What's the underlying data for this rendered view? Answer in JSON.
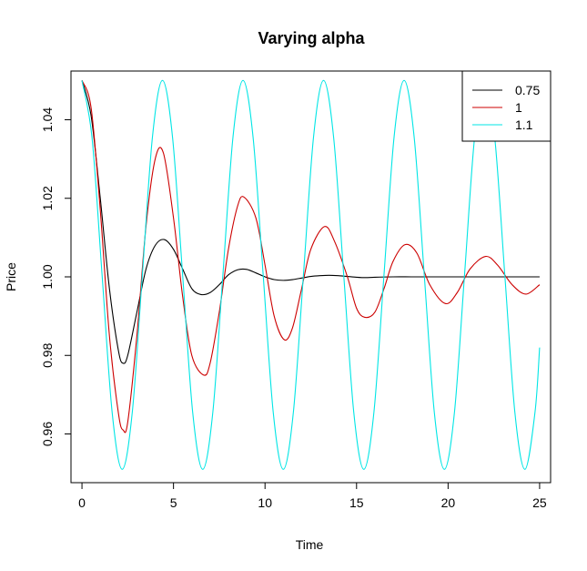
{
  "chart_data": {
    "type": "line",
    "title": "Varying alpha",
    "xlabel": "Time",
    "ylabel": "Price",
    "xlim": [
      -0.6,
      25.6
    ],
    "ylim": [
      0.9476,
      1.0524
    ],
    "xticks": [
      0,
      5,
      10,
      15,
      20,
      25
    ],
    "yticks": [
      0.96,
      0.98,
      1.0,
      1.02,
      1.04
    ],
    "xtick_labels": [
      "0",
      "5",
      "10",
      "15",
      "20",
      "25"
    ],
    "ytick_labels": [
      "0.96",
      "0.98",
      "1.00",
      "1.02",
      "1.04"
    ],
    "grid": false,
    "legend_position": "top-right",
    "colors": {
      "0.75": "#000000",
      "1": "#cc0000",
      "1.1": "#00e5e5"
    },
    "series": [
      {
        "name": "0.75",
        "color": "#000000",
        "x": [
          0.0,
          0.5,
          1.0,
          1.5,
          2.0,
          2.25,
          2.5,
          3.0,
          3.5,
          4.0,
          4.5,
          5.0,
          5.5,
          6.0,
          6.5,
          7.0,
          7.5,
          8.0,
          8.5,
          9.0,
          9.5,
          10.0,
          10.5,
          11.0,
          11.5,
          12.0,
          12.5,
          13.0,
          13.5,
          14.0,
          14.5,
          15.0,
          15.5,
          16.0,
          17.0,
          18.0,
          19.0,
          20.0,
          22.0,
          25.0
        ],
        "y": [
          1.05,
          1.041,
          1.02,
          0.997,
          0.981,
          0.978,
          0.98,
          0.991,
          1.002,
          1.008,
          1.0095,
          1.007,
          1.002,
          0.997,
          0.9955,
          0.996,
          0.998,
          1.0005,
          1.0018,
          1.0019,
          1.001,
          1.0,
          0.9993,
          0.9991,
          0.9993,
          0.9997,
          1.0001,
          1.0003,
          1.0004,
          1.0003,
          1.0001,
          0.9999,
          0.9998,
          0.9999,
          1.0,
          1.0,
          1.0,
          1.0,
          1.0,
          1.0
        ]
      },
      {
        "name": "1",
        "color": "#cc0000",
        "x": [
          0.0,
          0.5,
          1.0,
          1.5,
          2.0,
          2.25,
          2.5,
          3.0,
          3.5,
          4.0,
          4.45,
          5.0,
          5.5,
          6.0,
          6.65,
          7.0,
          7.5,
          8.0,
          8.5,
          8.85,
          9.5,
          10.0,
          10.5,
          11.05,
          11.5,
          12.0,
          12.5,
          13.25,
          13.8,
          14.5,
          15.0,
          15.45,
          16.0,
          16.5,
          17.0,
          17.65,
          18.3,
          19.0,
          19.85,
          20.5,
          21.2,
          22.05,
          22.7,
          23.5,
          24.25,
          25.0
        ],
        "y": [
          1.05,
          1.043,
          1.017,
          0.985,
          0.965,
          0.961,
          0.963,
          0.985,
          1.013,
          1.03,
          1.0315,
          1.015,
          0.995,
          0.98,
          0.975,
          0.978,
          0.991,
          1.007,
          1.018,
          1.0203,
          1.015,
          1.003,
          0.99,
          0.984,
          0.987,
          0.997,
          1.007,
          1.0128,
          1.009,
          1.0,
          0.992,
          0.9897,
          0.991,
          0.997,
          1.004,
          1.0082,
          1.006,
          0.998,
          0.9932,
          0.996,
          1.002,
          1.0052,
          1.003,
          0.998,
          0.9956,
          0.998
        ]
      },
      {
        "name": "1.1",
        "color": "#00e5e5",
        "x": [
          0.0,
          0.55,
          1.1,
          1.65,
          2.2,
          2.75,
          3.3,
          3.85,
          4.4,
          4.95,
          5.5,
          6.05,
          6.6,
          7.15,
          7.7,
          8.25,
          8.8,
          9.35,
          9.9,
          10.45,
          11.0,
          11.55,
          12.1,
          12.65,
          13.2,
          13.75,
          14.3,
          14.85,
          15.4,
          15.95,
          16.5,
          17.05,
          17.6,
          18.15,
          18.7,
          19.25,
          19.8,
          20.35,
          20.9,
          21.45,
          22.0,
          22.55,
          23.1,
          23.65,
          24.2,
          24.75,
          25.0
        ],
        "y": [
          1.05,
          1.0354,
          1.0004,
          0.9654,
          0.951,
          0.9656,
          1.0006,
          1.0356,
          1.05,
          1.0354,
          1.0004,
          0.9654,
          0.951,
          0.9656,
          1.0006,
          1.0356,
          1.05,
          1.0354,
          1.0004,
          0.9654,
          0.951,
          0.9656,
          1.0006,
          1.0356,
          1.05,
          1.0354,
          1.0004,
          0.9654,
          0.951,
          0.9656,
          1.0006,
          1.0356,
          1.05,
          1.0354,
          1.0004,
          0.9654,
          0.951,
          0.9656,
          1.0006,
          1.0356,
          1.05,
          1.0354,
          1.0004,
          0.9654,
          0.951,
          0.9656,
          0.982
        ]
      }
    ]
  }
}
